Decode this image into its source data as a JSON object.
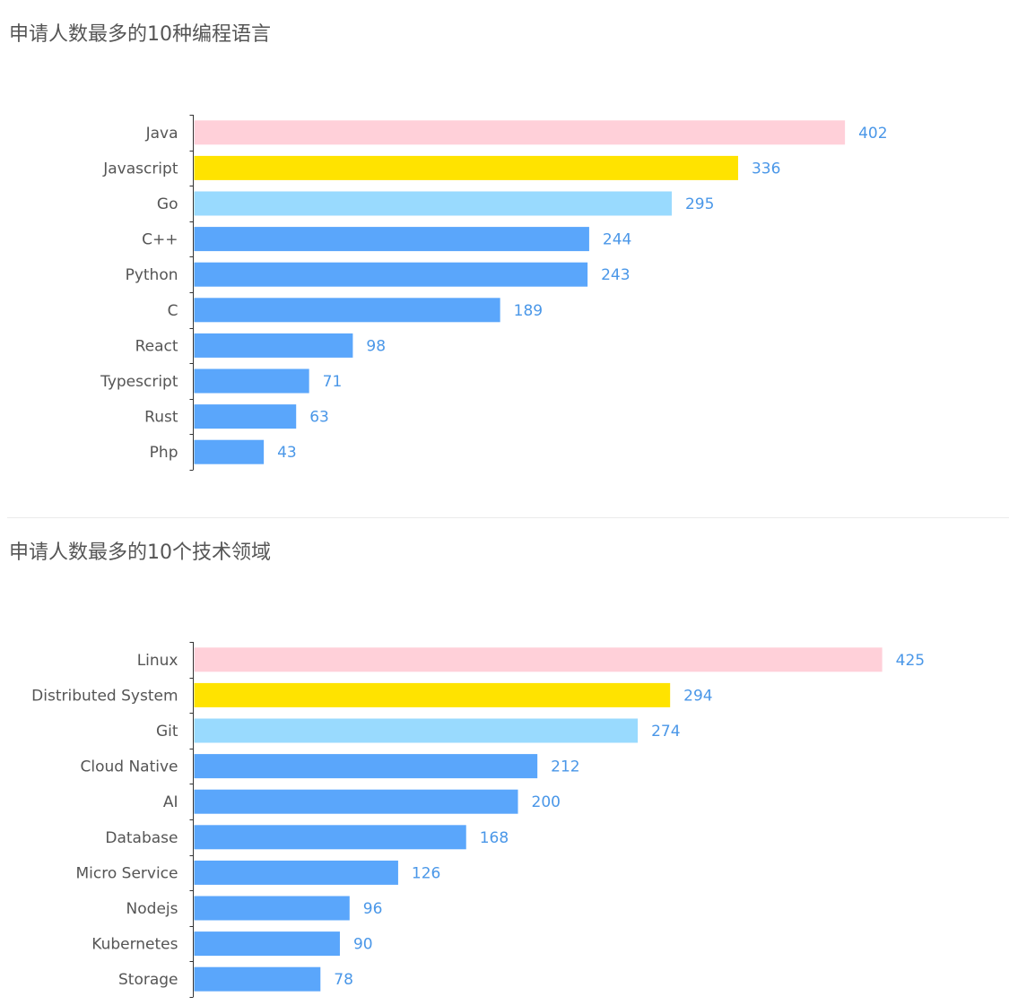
{
  "chart_data": [
    {
      "type": "bar",
      "orientation": "horizontal",
      "title": "申请人数最多的10种编程语言",
      "categories": [
        "Java",
        "Javascript",
        "Go",
        "C++",
        "Python",
        "C",
        "React",
        "Typescript",
        "Rust",
        "Php"
      ],
      "values": [
        402,
        336,
        295,
        244,
        243,
        189,
        98,
        71,
        63,
        43
      ],
      "colors": [
        "#ffd0d9",
        "#ffe300",
        "#99dafe",
        "#5aa6fb",
        "#5aa6fb",
        "#5aa6fb",
        "#5aa6fb",
        "#5aa6fb",
        "#5aa6fb",
        "#5aa6fb"
      ],
      "data_labels": true,
      "grid": false,
      "legend": "none"
    },
    {
      "type": "bar",
      "orientation": "horizontal",
      "title": "申请人数最多的10个技术领域",
      "categories": [
        "Linux",
        "Distributed System",
        "Git",
        "Cloud Native",
        "AI",
        "Database",
        "Micro Service",
        "Nodejs",
        "Kubernetes",
        "Storage"
      ],
      "values": [
        425,
        294,
        274,
        212,
        200,
        168,
        126,
        96,
        90,
        78
      ],
      "colors": [
        "#ffd0d9",
        "#ffe300",
        "#99dafe",
        "#5aa6fb",
        "#5aa6fb",
        "#5aa6fb",
        "#5aa6fb",
        "#5aa6fb",
        "#5aa6fb",
        "#5aa6fb"
      ],
      "data_labels": true,
      "grid": false,
      "legend": "none"
    }
  ]
}
